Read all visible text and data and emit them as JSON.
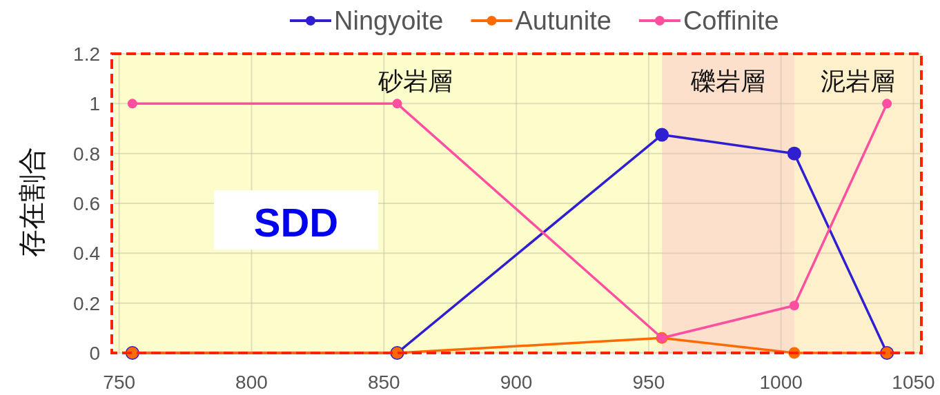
{
  "chart_data": {
    "type": "line",
    "ylabel": "存在割合",
    "x": [
      755,
      855,
      955,
      1005,
      1040
    ],
    "series": [
      {
        "name": "Ningyoite",
        "color": "#2f1fd0",
        "values": [
          0,
          0,
          0.875,
          0.8,
          0
        ]
      },
      {
        "name": "Autunite",
        "color": "#ff6a00",
        "values": [
          0,
          0,
          0.06,
          0,
          0
        ]
      },
      {
        "name": "Coffinite",
        "color": "#ff4fa0",
        "values": [
          1,
          1,
          0.06,
          0.19,
          1
        ]
      }
    ],
    "xlim": [
      748,
      1053
    ],
    "xticks": [
      750,
      800,
      850,
      900,
      950,
      1000,
      1050
    ],
    "ylim": [
      0,
      1.2
    ],
    "yticks": [
      0,
      0.2,
      0.4,
      0.6,
      0.8,
      1,
      1.2
    ],
    "bands": [
      {
        "axis": "x",
        "from": 748,
        "to": 955,
        "label": "砂岩層",
        "color": "#fdfccb"
      },
      {
        "axis": "x",
        "from": 955,
        "to": 1005,
        "label": "礫岩層",
        "color": "#fde0cc"
      },
      {
        "axis": "x",
        "from": 1005,
        "to": 1053,
        "label": "泥岩層",
        "color": "#fff0cc"
      }
    ],
    "annotations": [
      "SDD"
    ],
    "grid": true,
    "legend": "top",
    "marker": "circle",
    "line_style": "solid"
  }
}
